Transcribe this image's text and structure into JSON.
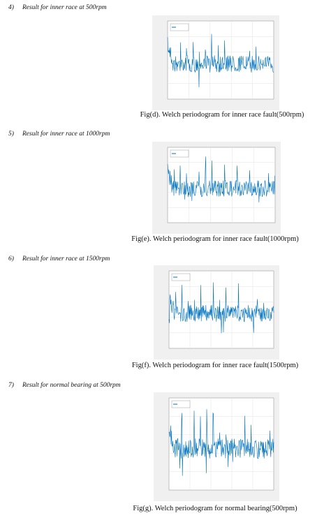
{
  "sections": [
    {
      "number": "4)",
      "heading": "Result for inner race at 500rpm",
      "caption": "Fig(d). Welch periodogram for inner race fault(500rpm)"
    },
    {
      "number": "5)",
      "heading": "Result for inner race at 1000rpm",
      "caption": "Fig(e). Welch periodogram for inner race fault(1000rpm)"
    },
    {
      "number": "6)",
      "heading": "Result for inner race at 1500rpm",
      "caption": "Fig(f). Welch periodogram for inner race fault(1500rpm)"
    },
    {
      "number": "7)",
      "heading": "Result for normal bearing at 500rpm",
      "caption": "Fig(g). Welch periodogram for normal bearing(500rpm)"
    }
  ]
}
